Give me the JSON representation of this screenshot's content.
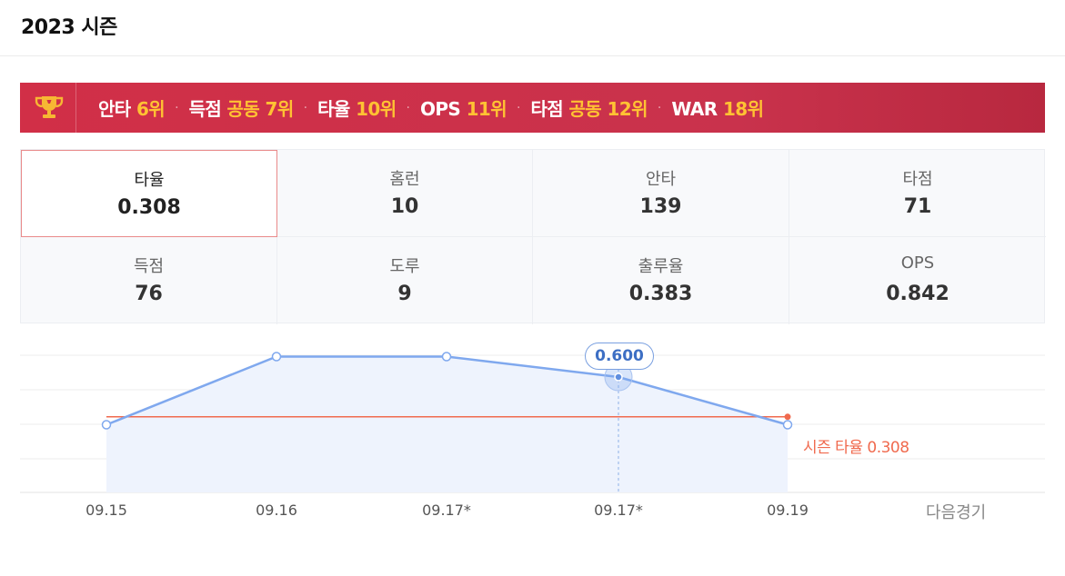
{
  "page": {
    "title": "2023 시즌"
  },
  "rank_banner": {
    "icon": "trophy-icon",
    "items": [
      {
        "stat": "안타",
        "rank": "6위"
      },
      {
        "stat": "득점",
        "rank": "공동 7위"
      },
      {
        "stat": "타율",
        "rank": "10위"
      },
      {
        "stat": "OPS",
        "rank": "11위"
      },
      {
        "stat": "타점",
        "rank": "공동 12위"
      },
      {
        "stat": "WAR",
        "rank": "18위"
      }
    ],
    "separator": "·"
  },
  "stats": [
    {
      "label": "타율",
      "value": "0.308",
      "selected": true
    },
    {
      "label": "홈런",
      "value": "10"
    },
    {
      "label": "안타",
      "value": "139"
    },
    {
      "label": "타점",
      "value": "71"
    },
    {
      "label": "득점",
      "value": "76"
    },
    {
      "label": "도루",
      "value": "9"
    },
    {
      "label": "출루율",
      "value": "0.383"
    },
    {
      "label": "OPS",
      "value": "0.842"
    }
  ],
  "chart": {
    "tooltip": "0.600",
    "season_avg_label": "시즌 타율",
    "season_avg_value": "0.308",
    "next_game_label": "다음경기"
  },
  "chart_data": {
    "type": "line",
    "categories": [
      "09.15",
      "09.16",
      "09.17*",
      "09.17*",
      "09.19"
    ],
    "series": [
      {
        "values": [
          0.25,
          0.75,
          0.75,
          0.6,
          0.25
        ]
      }
    ],
    "reference_line": 0.308,
    "highlighted_index": 3,
    "colors": {
      "line": "#7fa8ee",
      "fill": "#eef3fd",
      "reference": "#f06a4e"
    },
    "grid": true
  }
}
